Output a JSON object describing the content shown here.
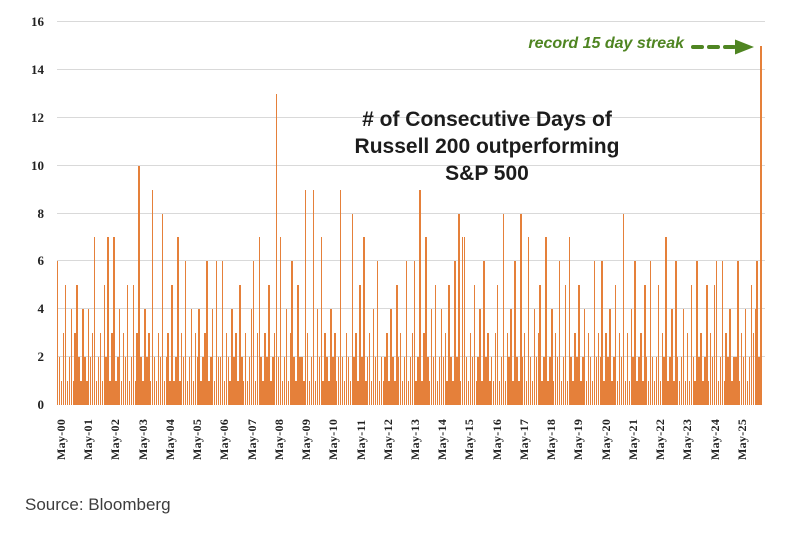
{
  "page": {
    "background": "#ffffff",
    "source_note": "Source: Bloomberg"
  },
  "chart": {
    "title_lines": {
      "line1": "# of Consecutive Days of",
      "line2": "Russell 200 outperforming",
      "line3": "S&P 500"
    },
    "annotation": {
      "text": "record 15 day streak",
      "color": "#4f8522"
    },
    "colors": {
      "bar": "#e5803a",
      "gridline": "#d9d9d9",
      "tick_text": "#222222",
      "title_text": "#1c1c1c",
      "source_text": "#3d3d3d"
    }
  },
  "chart_data": {
    "type": "bar",
    "title": "# of Consecutive Days of Russell 200 outperforming S&P 500",
    "xlabel": "",
    "ylabel": "",
    "ylim": [
      0,
      16
    ],
    "y_ticks": [
      0,
      2,
      4,
      6,
      8,
      10,
      12,
      14,
      16
    ],
    "grid": "horizontal",
    "legend": "none",
    "annotation": "record 15 day streak",
    "record_value": 15,
    "record_position": "last bar (May-25)",
    "notable_values": {
      "May-03": 10,
      "May-08": 13,
      "May-09": 9,
      "May-25": 15
    },
    "x_tick_labels": [
      "May-00",
      "May-01",
      "May-02",
      "May-03",
      "May-04",
      "May-05",
      "May-06",
      "May-07",
      "May-08",
      "May-09",
      "May-10",
      "May-11",
      "May-12",
      "May-13",
      "May-14",
      "May-15",
      "May-16",
      "May-17",
      "May-18",
      "May-19",
      "May-20",
      "May-21",
      "May-22",
      "May-23",
      "May-24",
      "May-25"
    ],
    "bars_per_year": 14,
    "values": [
      6,
      2,
      1,
      3,
      5,
      1,
      2,
      4,
      1,
      3,
      5,
      2,
      1,
      4,
      2,
      1,
      4,
      2,
      3,
      7,
      1,
      2,
      3,
      1,
      5,
      2,
      7,
      1,
      3,
      7,
      1,
      2,
      4,
      1,
      3,
      2,
      5,
      1,
      2,
      5,
      1,
      3,
      10,
      2,
      1,
      4,
      2,
      3,
      1,
      9,
      2,
      1,
      3,
      2,
      8,
      1,
      2,
      3,
      1,
      5,
      1,
      2,
      7,
      1,
      3,
      2,
      6,
      1,
      2,
      4,
      1,
      3,
      2,
      4,
      1,
      2,
      3,
      6,
      1,
      2,
      4,
      1,
      6,
      2,
      2,
      6,
      1,
      3,
      2,
      1,
      4,
      2,
      3,
      1,
      5,
      2,
      1,
      3,
      1,
      2,
      4,
      6,
      1,
      3,
      7,
      2,
      1,
      3,
      2,
      5,
      1,
      2,
      3,
      13,
      2,
      7,
      1,
      2,
      4,
      1,
      3,
      6,
      2,
      1,
      5,
      2,
      2,
      1,
      9,
      3,
      1,
      2,
      9,
      1,
      4,
      2,
      7,
      1,
      3,
      2,
      1,
      4,
      2,
      3,
      1,
      2,
      9,
      2,
      1,
      3,
      2,
      1,
      8,
      2,
      3,
      1,
      5,
      2,
      7,
      1,
      2,
      3,
      1,
      4,
      2,
      6,
      1,
      2,
      1,
      2,
      3,
      1,
      4,
      2,
      1,
      5,
      2,
      3,
      1,
      2,
      6,
      1,
      2,
      3,
      6,
      1,
      2,
      9,
      1,
      3,
      7,
      2,
      1,
      4,
      2,
      5,
      1,
      2,
      4,
      2,
      3,
      1,
      5,
      2,
      1,
      6,
      2,
      8,
      1,
      7,
      7,
      2,
      1,
      3,
      2,
      5,
      1,
      2,
      4,
      1,
      6,
      2,
      3,
      1,
      2,
      1,
      3,
      5,
      1,
      2,
      8,
      1,
      3,
      2,
      4,
      1,
      6,
      2,
      1,
      8,
      2,
      3,
      1,
      7,
      2,
      1,
      4,
      2,
      3,
      5,
      1,
      2,
      7,
      1,
      2,
      4,
      1,
      3,
      2,
      6,
      1,
      2,
      5,
      1,
      7,
      2,
      1,
      3,
      2,
      5,
      1,
      2,
      4,
      1,
      3,
      2,
      1,
      6,
      2,
      3,
      2,
      6,
      1,
      3,
      2,
      4,
      1,
      2,
      5,
      1,
      3,
      2,
      8,
      1,
      3,
      1,
      4,
      2,
      6,
      1,
      2,
      3,
      1,
      5,
      2,
      1,
      6,
      2,
      1,
      2,
      5,
      1,
      3,
      2,
      7,
      1,
      2,
      4,
      1,
      6,
      2,
      1,
      2,
      4,
      1,
      3,
      1,
      5,
      2,
      1,
      6,
      2,
      3,
      1,
      2,
      5,
      1,
      3,
      2,
      5,
      6,
      1,
      2,
      6,
      1,
      3,
      2,
      4,
      1,
      2,
      2,
      6,
      1,
      3,
      2,
      4,
      1,
      2,
      5,
      3,
      4,
      6,
      2,
      15
    ]
  }
}
